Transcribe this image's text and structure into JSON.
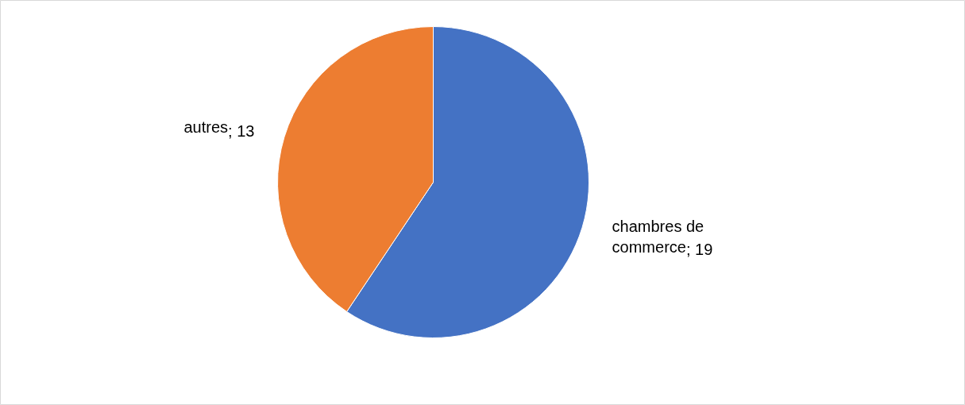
{
  "chart_data": {
    "type": "pie",
    "categories": [
      "chambres de commerce",
      "autres"
    ],
    "values": [
      19,
      13
    ],
    "colors": [
      "#4472c4",
      "#ed7d31"
    ],
    "value_labels": [
      "; 19",
      "; 13"
    ]
  }
}
